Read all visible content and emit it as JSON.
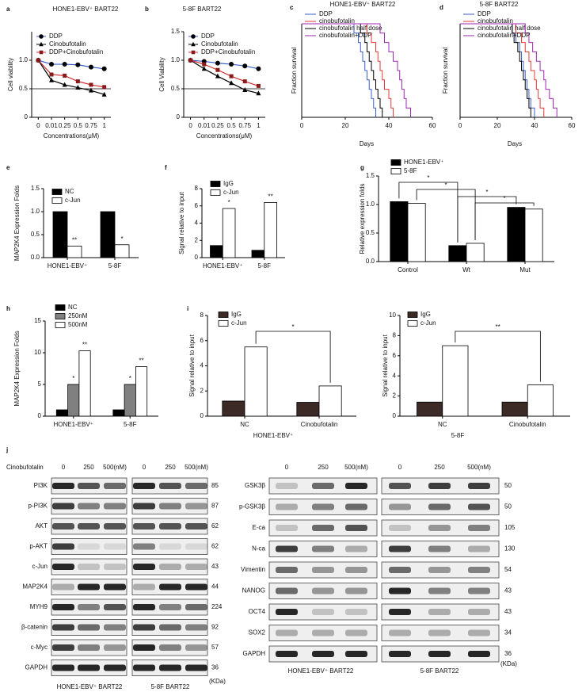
{
  "chart_data": [
    {
      "type": "line",
      "panel": "a",
      "title": "HONE1-EBV⁺ BART22",
      "x_label": "Concentrations(μM)",
      "y_label": "Cell viability",
      "categories": [
        "0",
        "0.01",
        "0.25",
        "0.5",
        "0.75",
        "1"
      ],
      "ylim": [
        0,
        1.5
      ],
      "yticks": [
        0,
        0.5,
        {
          "value": 1,
          "label": "1.0"
        }
      ],
      "reference_line": 0.5,
      "series": [
        {
          "name": "DDP",
          "color": "#3a5fcd",
          "marker": "circle",
          "marker_color": "#000000",
          "values": [
            1.0,
            0.93,
            0.93,
            0.92,
            0.88,
            0.85
          ]
        },
        {
          "name": "Cinobufotalin",
          "color": "#000000",
          "marker": "triangle",
          "marker_color": "#000000",
          "values": [
            1.0,
            0.65,
            0.57,
            0.52,
            0.47,
            0.4
          ]
        },
        {
          "name": "DDP+Cinobufotalin",
          "color": "#d32f2f",
          "marker": "square",
          "marker_color": "#8b1a1a",
          "values": [
            1.0,
            0.75,
            0.73,
            0.63,
            0.57,
            0.53
          ]
        }
      ]
    },
    {
      "type": "line",
      "panel": "b",
      "title": "5-8F BART22",
      "x_label": "Concentrations(μM)",
      "y_label": "Cell Viability",
      "categories": [
        "0",
        "0.01",
        "0.25",
        "0.5",
        "0.75",
        "1"
      ],
      "ylim": [
        0,
        1.5
      ],
      "yticks": [
        0,
        0.5,
        {
          "value": 1,
          "label": "1.0"
        },
        1.5
      ],
      "reference_line": 0.5,
      "series": [
        {
          "name": "DDP",
          "color": "#3a5fcd",
          "marker": "circle",
          "marker_color": "#000000",
          "values": [
            1.0,
            0.98,
            0.95,
            0.93,
            0.9,
            0.85
          ]
        },
        {
          "name": "Cinobufotalin",
          "color": "#000000",
          "marker": "triangle",
          "marker_color": "#000000",
          "values": [
            1.0,
            0.85,
            0.72,
            0.6,
            0.48,
            0.42
          ]
        },
        {
          "name": "DDP+Cinobufotalin",
          "color": "#d32f2f",
          "marker": "square",
          "marker_color": "#8b1a1a",
          "values": [
            1.0,
            0.93,
            0.83,
            0.72,
            0.63,
            0.55
          ]
        }
      ]
    },
    {
      "type": "step",
      "panel": "c",
      "title": "HONE1-EBV⁺ BART22",
      "x_label": "Days",
      "y_label": "Fraction survival",
      "xlim": [
        0,
        60
      ],
      "xticks": [
        0,
        20,
        40,
        60
      ],
      "ylim": [
        0,
        1
      ],
      "series": [
        {
          "name": "DDP",
          "color": "#3a5fcd",
          "x": [
            0,
            24,
            26,
            27,
            28,
            29,
            30,
            31,
            32,
            33,
            34
          ],
          "values": [
            1,
            0.9,
            0.8,
            0.7,
            0.6,
            0.5,
            0.4,
            0.3,
            0.2,
            0.1,
            0
          ]
        },
        {
          "name": "cinobufotalin",
          "color": "#e53935",
          "x": [
            0,
            30,
            32,
            34,
            35,
            36,
            37,
            38,
            40,
            41,
            42
          ],
          "values": [
            1,
            0.9,
            0.8,
            0.7,
            0.6,
            0.5,
            0.4,
            0.3,
            0.2,
            0.1,
            0
          ]
        },
        {
          "name": "cinobufotalin half dose",
          "color": "#000000",
          "x": [
            0,
            27,
            29,
            30,
            31,
            32,
            33,
            34,
            35,
            36,
            37
          ],
          "values": [
            1,
            0.9,
            0.8,
            0.7,
            0.6,
            0.5,
            0.4,
            0.3,
            0.2,
            0.1,
            0
          ]
        },
        {
          "name": "cinobufotalin+DDP",
          "color": "#9c27b0",
          "x": [
            0,
            36,
            38,
            40,
            42,
            44,
            45,
            46,
            47,
            48,
            50
          ],
          "values": [
            1,
            0.9,
            0.8,
            0.7,
            0.6,
            0.5,
            0.4,
            0.3,
            0.2,
            0.1,
            0
          ]
        }
      ]
    },
    {
      "type": "step",
      "panel": "d",
      "title": "5-8F BART22",
      "x_label": "Days",
      "y_label": "Fraction survival",
      "xlim": [
        0,
        60
      ],
      "xticks": [
        0,
        20,
        40,
        60
      ],
      "ylim": [
        0,
        1
      ],
      "series": [
        {
          "name": "DDP",
          "color": "#3a5fcd",
          "x": [
            0,
            28,
            30,
            32,
            33,
            34,
            35,
            36,
            37,
            38,
            40
          ],
          "values": [
            1,
            0.9,
            0.8,
            0.7,
            0.6,
            0.5,
            0.4,
            0.3,
            0.2,
            0.1,
            0
          ]
        },
        {
          "name": "cinobufotalin",
          "color": "#e53935",
          "x": [
            0,
            30,
            33,
            35,
            37,
            38,
            40,
            41,
            42,
            43,
            45
          ],
          "values": [
            1,
            0.9,
            0.8,
            0.7,
            0.6,
            0.5,
            0.4,
            0.3,
            0.2,
            0.1,
            0
          ]
        },
        {
          "name": "cinobufotalin half dose",
          "color": "#000000",
          "x": [
            0,
            28,
            29,
            31,
            32,
            33,
            34,
            35,
            36,
            37,
            38
          ],
          "values": [
            1,
            0.9,
            0.8,
            0.7,
            0.6,
            0.5,
            0.4,
            0.3,
            0.2,
            0.1,
            0
          ]
        },
        {
          "name": "cinobufotalin+DDP",
          "color": "#9c27b0",
          "x": [
            0,
            35,
            37,
            39,
            41,
            43,
            45,
            46,
            48,
            50,
            52
          ],
          "values": [
            1,
            0.9,
            0.8,
            0.7,
            0.6,
            0.5,
            0.4,
            0.3,
            0.2,
            0.1,
            0
          ]
        }
      ]
    },
    {
      "type": "bar",
      "panel": "e",
      "y_label": "MAP2K4 Expression Folds",
      "categories": [
        "HONE1-EBV⁺",
        "5-8F"
      ],
      "ylim": [
        0,
        1.5
      ],
      "yticks": [
        {
          "value": 0,
          "label": "0.0"
        },
        0.5,
        {
          "value": 1,
          "label": "1.0"
        },
        1.5
      ],
      "series": [
        {
          "name": "NC",
          "color": "#000000",
          "values": [
            1,
            1
          ]
        },
        {
          "name": "c-Jun",
          "color": "#ffffff",
          "values": [
            0.25,
            0.28
          ],
          "sig": [
            "**",
            "*"
          ]
        }
      ]
    },
    {
      "type": "bar",
      "panel": "f",
      "y_label": "Signal relative to input",
      "categories": [
        "HONE1-EBV⁺",
        "5-8F"
      ],
      "ylim": [
        0,
        8
      ],
      "yticks": [
        0,
        2,
        4,
        6,
        8
      ],
      "series": [
        {
          "name": "IgG",
          "color": "#000000",
          "values": [
            1.4,
            0.85
          ]
        },
        {
          "name": "c-Jun",
          "color": "#ffffff",
          "values": [
            5.7,
            6.4
          ],
          "sig": [
            "*",
            "**"
          ]
        }
      ]
    },
    {
      "type": "bar",
      "panel": "g",
      "y_label": "Relative expression folds",
      "categories": [
        "Control",
        "Wt",
        "Mut"
      ],
      "ylim": [
        0,
        1.5
      ],
      "yticks": [
        {
          "value": 0,
          "label": "0.0"
        },
        0.5,
        {
          "value": 1,
          "label": "1.0"
        },
        1.5
      ],
      "series": [
        {
          "name": "HONE1-EBV⁺",
          "color": "#000000",
          "values": [
            1.05,
            0.28,
            0.95
          ]
        },
        {
          "name": "5-8F",
          "color": "#ffffff",
          "values": [
            1.02,
            0.32,
            0.92
          ]
        }
      ],
      "brackets": [
        "*",
        "*",
        "*",
        "*"
      ]
    },
    {
      "type": "bar",
      "panel": "h",
      "y_label": "MAP2K4 Expression Folds",
      "categories": [
        "HONE1-EBV⁺",
        "5-8F"
      ],
      "ylim": [
        0,
        15
      ],
      "yticks": [
        0,
        5,
        10,
        15
      ],
      "series": [
        {
          "name": "NC",
          "color": "#000000",
          "values": [
            1,
            1
          ]
        },
        {
          "name": "250nM",
          "color": "#808080",
          "values": [
            5,
            5
          ],
          "sig": [
            "*",
            "*"
          ]
        },
        {
          "name": "500nM",
          "color": "#ffffff",
          "values": [
            10.3,
            7.8
          ],
          "sig": [
            "**",
            "**"
          ]
        }
      ]
    },
    {
      "type": "bar",
      "panel": "i",
      "x_label": "HONE1-EBV⁺",
      "y_label": "Signal relative to input",
      "categories": [
        "NC",
        "Cinobufotalin"
      ],
      "ylim": [
        0,
        8
      ],
      "yticks": [
        0,
        2,
        4,
        6,
        8
      ],
      "series": [
        {
          "name": "IgG",
          "color": "#3b2a26",
          "values": [
            1.2,
            1.1
          ]
        },
        {
          "name": "c-Jun",
          "color": "#ffffff",
          "values": [
            5.5,
            2.4
          ]
        }
      ],
      "brackets": [
        "*"
      ]
    },
    {
      "type": "bar",
      "x_label": "5-8F",
      "y_label": "Signal relative to input",
      "categories": [
        "NC",
        "Cinobufotalin"
      ],
      "ylim": [
        0,
        10
      ],
      "yticks": [
        0,
        2,
        4,
        6,
        8,
        10
      ],
      "series": [
        {
          "name": "IgG",
          "color": "#3b2a26",
          "values": [
            1.4,
            1.4
          ]
        },
        {
          "name": "c-Jun",
          "color": "#ffffff",
          "values": [
            7.0,
            3.1
          ]
        }
      ],
      "brackets": [
        "**"
      ]
    }
  ],
  "blots": {
    "panel": "j",
    "treatment": "Cinobufotalin",
    "left": {
      "doses": [
        "0",
        "250",
        "500(nM)",
        "0",
        "250",
        "500(nM)"
      ],
      "rows": [
        {
          "label": "PI3K",
          "kda": 85
        },
        {
          "label": "p-PI3K",
          "kda": 87
        },
        {
          "label": "AKT",
          "kda": 62
        },
        {
          "label": "p-AKT",
          "kda": 62
        },
        {
          "label": "c-Jun",
          "kda": 43
        },
        {
          "label": "MAP2K4",
          "kda": 44
        },
        {
          "label": "MYH9",
          "kda": 224
        },
        {
          "label": "β-catenin",
          "kda": 92
        },
        {
          "label": "c-Myc",
          "kda": 57
        },
        {
          "label": "GAPDH",
          "kda": 36
        }
      ],
      "unit": "(KDa)",
      "cells": [
        "HONE1-EBV⁺ BART22",
        "5-8F BART22"
      ]
    },
    "right": {
      "doses": [
        "0",
        "250",
        "500(nM)",
        "0",
        "250",
        "500(nM)"
      ],
      "rows": [
        {
          "label": "GSK3β",
          "kda": 50
        },
        {
          "label": "p-GSK3β",
          "kda": 50
        },
        {
          "label": "E-ca",
          "kda": 105
        },
        {
          "label": "N-ca",
          "kda": 130
        },
        {
          "label": "Vimentin",
          "kda": 54
        },
        {
          "label": "NANOG",
          "kda": 43
        },
        {
          "label": "OCT4",
          "kda": 43
        },
        {
          "label": "SOX2",
          "kda": 34
        },
        {
          "label": "GAPDH",
          "kda": 36
        }
      ],
      "unit": "(KDa)",
      "cells": [
        "HONE1-EBV⁺ BART22",
        "5-8F BART22"
      ]
    }
  }
}
